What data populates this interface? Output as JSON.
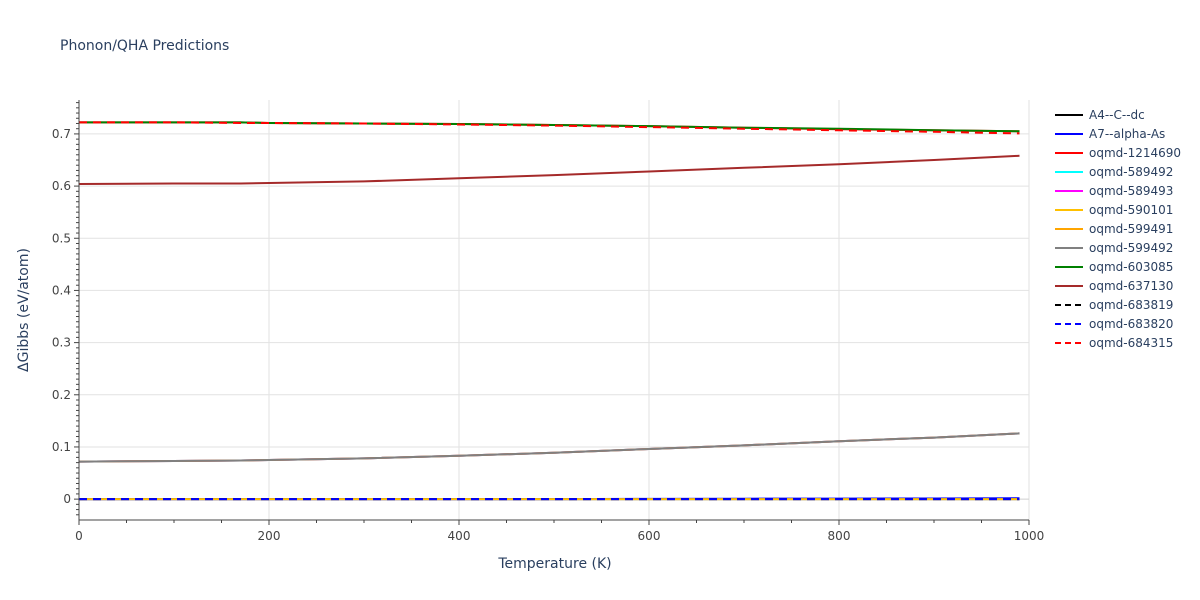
{
  "chart_data": {
    "type": "line",
    "title": "Phonon/QHA Predictions",
    "xlabel": "Temperature (K)",
    "ylabel": "ΔGibbs (eV/atom)",
    "xlim": [
      0,
      1000
    ],
    "ylim": [
      -0.04,
      0.765
    ],
    "x_ticks": [
      0,
      200,
      400,
      600,
      800,
      1000
    ],
    "y_ticks": [
      0,
      0.1,
      0.2,
      0.3,
      0.4,
      0.5,
      0.6,
      0.7
    ],
    "x_tick_labels": [
      "0",
      "200",
      "400",
      "600",
      "800",
      "1000"
    ],
    "y_tick_labels": [
      "0",
      "0.1",
      "0.2",
      "0.3",
      "0.4",
      "0.5",
      "0.6",
      "0.7"
    ],
    "grid": true,
    "legend_position": "right",
    "x": [
      0,
      100,
      170,
      200,
      300,
      400,
      500,
      600,
      700,
      800,
      900,
      990
    ],
    "series": [
      {
        "name": "A4--C--dc",
        "color": "#000000",
        "dash": "solid",
        "values": [
          0,
          0,
          0,
          0,
          0,
          0,
          0,
          0,
          0,
          0,
          0,
          0
        ]
      },
      {
        "name": "A7--alpha-As",
        "color": "#0000ff",
        "dash": "solid",
        "values": [
          0,
          0,
          0,
          0,
          0,
          0,
          0,
          0.0005,
          0.0008,
          0.001,
          0.0012,
          0.0015
        ]
      },
      {
        "name": "oqmd-1214690",
        "color": "#ff0000",
        "dash": "solid",
        "values": [
          0.722,
          0.722,
          0.722,
          0.721,
          0.72,
          0.719,
          0.717,
          0.715,
          0.712,
          0.709,
          0.707,
          0.705
        ]
      },
      {
        "name": "oqmd-589492",
        "color": "#00ffff",
        "dash": "solid",
        "values": [
          0.072,
          0.073,
          0.074,
          0.075,
          0.078,
          0.083,
          0.089,
          0.096,
          0.103,
          0.111,
          0.118,
          0.126
        ]
      },
      {
        "name": "oqmd-589493",
        "color": "#ff00ff",
        "dash": "solid",
        "values": [
          0.072,
          0.073,
          0.074,
          0.075,
          0.078,
          0.083,
          0.089,
          0.096,
          0.103,
          0.111,
          0.118,
          0.126
        ]
      },
      {
        "name": "oqmd-590101",
        "color": "#ffc000",
        "dash": "solid",
        "values": [
          0,
          0,
          0,
          0,
          0,
          0,
          0,
          0,
          0,
          0,
          0,
          0
        ]
      },
      {
        "name": "oqmd-599491",
        "color": "#ffa500",
        "dash": "solid",
        "values": [
          0.072,
          0.073,
          0.074,
          0.075,
          0.078,
          0.083,
          0.089,
          0.096,
          0.103,
          0.111,
          0.118,
          0.126
        ]
      },
      {
        "name": "oqmd-599492",
        "color": "#808080",
        "dash": "solid",
        "values": [
          0.072,
          0.073,
          0.074,
          0.075,
          0.078,
          0.083,
          0.089,
          0.096,
          0.103,
          0.111,
          0.118,
          0.126
        ]
      },
      {
        "name": "oqmd-603085",
        "color": "#008000",
        "dash": "solid",
        "values": [
          0.722,
          0.722,
          0.722,
          0.721,
          0.72,
          0.719,
          0.717,
          0.715,
          0.712,
          0.71,
          0.707,
          0.705
        ]
      },
      {
        "name": "oqmd-637130",
        "color": "#a52a2a",
        "dash": "solid",
        "values": [
          0.604,
          0.605,
          0.605,
          0.606,
          0.609,
          0.615,
          0.621,
          0.628,
          0.635,
          0.642,
          0.65,
          0.658
        ]
      },
      {
        "name": "oqmd-683819",
        "color": "#000000",
        "dash": "dash",
        "values": [
          0,
          0,
          0,
          0,
          0,
          0,
          0,
          0,
          0,
          0,
          0,
          0
        ]
      },
      {
        "name": "oqmd-683820",
        "color": "#0000ff",
        "dash": "dash",
        "values": [
          0,
          0,
          0,
          0,
          0,
          0,
          0,
          0,
          0,
          0,
          0,
          0
        ]
      },
      {
        "name": "oqmd-684315",
        "color": "#ff0000",
        "dash": "dash",
        "values": [
          0.722,
          0.722,
          0.721,
          0.721,
          0.72,
          0.718,
          0.716,
          0.713,
          0.71,
          0.707,
          0.704,
          0.701
        ]
      }
    ]
  }
}
